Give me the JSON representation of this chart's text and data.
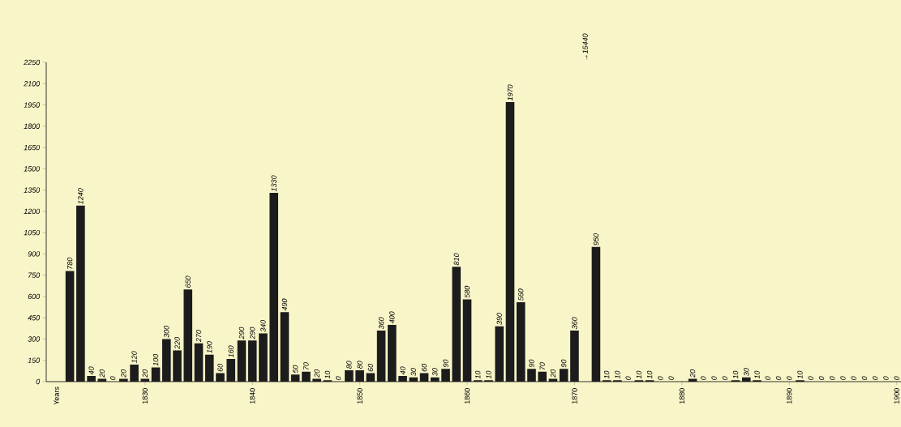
{
  "chart_data": {
    "type": "bar",
    "annotations": [
      "Years"
    ],
    "x": [
      1823,
      1824,
      1825,
      1826,
      1827,
      1828,
      1829,
      1830,
      1831,
      1832,
      1833,
      1834,
      1835,
      1836,
      1837,
      1838,
      1839,
      1840,
      1841,
      1842,
      1843,
      1844,
      1845,
      1846,
      1847,
      1848,
      1849,
      1850,
      1851,
      1852,
      1853,
      1854,
      1855,
      1856,
      1857,
      1858,
      1859,
      1860,
      1861,
      1862,
      1863,
      1864,
      1865,
      1866,
      1867,
      1868,
      1869,
      1870,
      1871,
      1872,
      1873,
      1874,
      1875,
      1876,
      1877,
      1878,
      1879,
      1880,
      1881,
      1882,
      1883,
      1884,
      1885,
      1886,
      1887,
      1888,
      1889,
      1890,
      1891,
      1892,
      1893,
      1894,
      1895,
      1896,
      1897,
      1898,
      1899,
      1900
    ],
    "values": [
      780,
      1240,
      40,
      20,
      0,
      20,
      120,
      20,
      100,
      300,
      220,
      650,
      270,
      190,
      60,
      160,
      290,
      290,
      340,
      1330,
      490,
      50,
      70,
      20,
      10,
      0,
      80,
      80,
      60,
      360,
      400,
      40,
      30,
      60,
      30,
      90,
      810,
      580,
      10,
      10,
      390,
      1970,
      560,
      90,
      70,
      20,
      90,
      360,
      null,
      950,
      10,
      10,
      0,
      10,
      10,
      0,
      0,
      0,
      20,
      0,
      0,
      0,
      10,
      30,
      10,
      0,
      0,
      0,
      10,
      0,
      0,
      0,
      0,
      0,
      0,
      0,
      0,
      0
    ],
    "value_labels": [
      "780",
      "1240",
      "40",
      "20",
      "0",
      "20",
      "120",
      "20",
      "100",
      "300",
      "220",
      "650",
      "270",
      "190",
      "60",
      "160",
      "290",
      "290",
      "340",
      "1330",
      "490",
      "50",
      "70",
      "20",
      "10",
      "0",
      "80",
      "80",
      "60",
      "360",
      "400",
      "40",
      "30",
      "60",
      "30",
      "90",
      "810",
      "580",
      "10",
      "10",
      "390",
      "1970",
      "560",
      "90",
      "70",
      "20",
      "90",
      "360",
      "→15440",
      "950",
      "10",
      "10",
      "0",
      "10",
      "10",
      "0",
      "0",
      null,
      "20",
      "0",
      "0",
      "0",
      "10",
      "30",
      "10",
      "0",
      "0",
      "0",
      "10",
      "0",
      "0",
      "0",
      "0",
      "0",
      "0",
      "0",
      "0",
      "0"
    ],
    "color": "#1c1c1c",
    "xlim": [
      1820.8,
      1900.4
    ],
    "xticks": [
      1830,
      1840,
      1850,
      1860,
      1870,
      1880,
      1890,
      1900
    ],
    "ylim": [
      0,
      2250
    ],
    "yticks": [
      0,
      150,
      300,
      450,
      600,
      750,
      900,
      1050,
      1200,
      1350,
      1500,
      1650,
      1800,
      1950,
      2100,
      2250
    ]
  }
}
